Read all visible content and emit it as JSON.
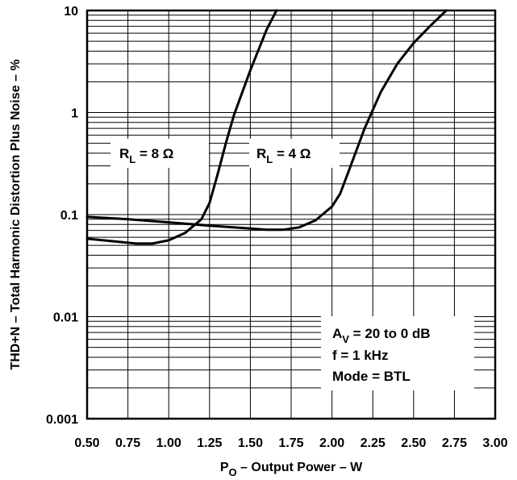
{
  "chart_data": {
    "type": "line",
    "title": "",
    "xlabel": {
      "main": "P",
      "sub": "O",
      "rest": " – Output Power – W"
    },
    "ylabel": "THD+N – Total Harmonic Distortion Plus Noise – %",
    "xlim": [
      0.5,
      3.0
    ],
    "ylim": [
      0.001,
      10
    ],
    "yscale": "log",
    "x_ticks": [
      "0.50",
      "0.75",
      "1.00",
      "1.25",
      "1.50",
      "1.75",
      "2.00",
      "2.25",
      "2.50",
      "2.75",
      "3.00"
    ],
    "y_ticks": [
      {
        "value": 0.001,
        "label": "0.001"
      },
      {
        "value": 0.01,
        "label": "0.01"
      },
      {
        "value": 0.1,
        "label": "0.1"
      },
      {
        "value": 1,
        "label": "1"
      },
      {
        "value": 10,
        "label": "10"
      }
    ],
    "grid": true,
    "series": [
      {
        "label": {
          "main": "R",
          "sub": "L",
          "rest": " = 8 Ω"
        },
        "points": [
          [
            0.5,
            0.058
          ],
          [
            0.6,
            0.056
          ],
          [
            0.7,
            0.054
          ],
          [
            0.8,
            0.052
          ],
          [
            0.9,
            0.052
          ],
          [
            1.0,
            0.056
          ],
          [
            1.1,
            0.066
          ],
          [
            1.2,
            0.09
          ],
          [
            1.25,
            0.13
          ],
          [
            1.3,
            0.25
          ],
          [
            1.35,
            0.5
          ],
          [
            1.4,
            0.95
          ],
          [
            1.5,
            2.6
          ],
          [
            1.6,
            6.5
          ],
          [
            1.66,
            10
          ]
        ]
      },
      {
        "label": {
          "main": "R",
          "sub": "L",
          "rest": " = 4 Ω"
        },
        "points": [
          [
            0.5,
            0.095
          ],
          [
            0.75,
            0.09
          ],
          [
            1.0,
            0.084
          ],
          [
            1.25,
            0.078
          ],
          [
            1.5,
            0.073
          ],
          [
            1.6,
            0.071
          ],
          [
            1.7,
            0.071
          ],
          [
            1.8,
            0.075
          ],
          [
            1.9,
            0.088
          ],
          [
            2.0,
            0.12
          ],
          [
            2.05,
            0.16
          ],
          [
            2.1,
            0.26
          ],
          [
            2.2,
            0.7
          ],
          [
            2.3,
            1.6
          ],
          [
            2.4,
            3.0
          ],
          [
            2.5,
            4.8
          ],
          [
            2.6,
            7.0
          ],
          [
            2.7,
            10
          ]
        ]
      }
    ],
    "annotation": {
      "gain": {
        "main": "A",
        "sub": "V",
        "rest": " = 20 to 0 dB"
      },
      "freq": "f = 1 kHz",
      "mode": "Mode = BTL"
    }
  }
}
